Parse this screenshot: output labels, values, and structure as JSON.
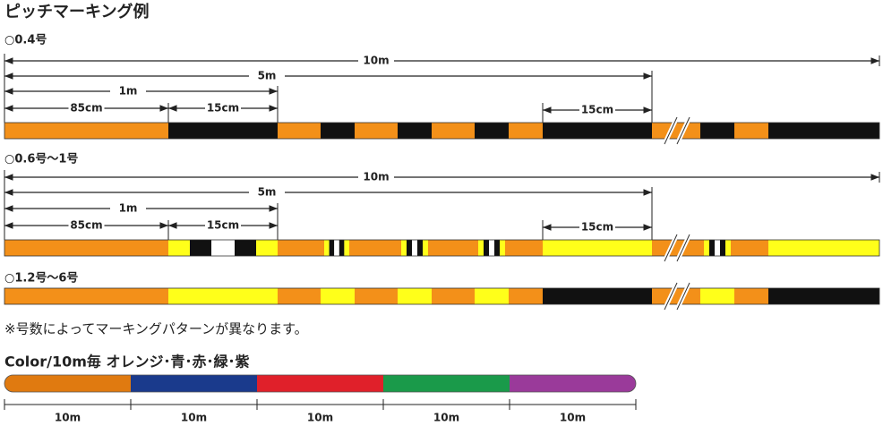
{
  "title": "ピッチマーキング例",
  "sections": [
    {
      "label": "○0.4号",
      "dimensions": {
        "total": "10m",
        "half": "5m",
        "one": "1m",
        "first": "85cm",
        "second": "15cm",
        "third": "15cm"
      }
    },
    {
      "label": "○0.6号～1号",
      "dimensions": {
        "total": "10m",
        "half": "5m",
        "one": "1m",
        "first": "85cm",
        "second": "15cm",
        "third": "15cm"
      }
    },
    {
      "label": "○1.2号～6号"
    }
  ],
  "note": "※号数によってマーキングパターンが異なります。",
  "color_title": "Color/10m毎 オレンジ･青･赤･緑･紫",
  "segment_labels": [
    "10m",
    "10m",
    "10m",
    "10m",
    "10m"
  ]
}
